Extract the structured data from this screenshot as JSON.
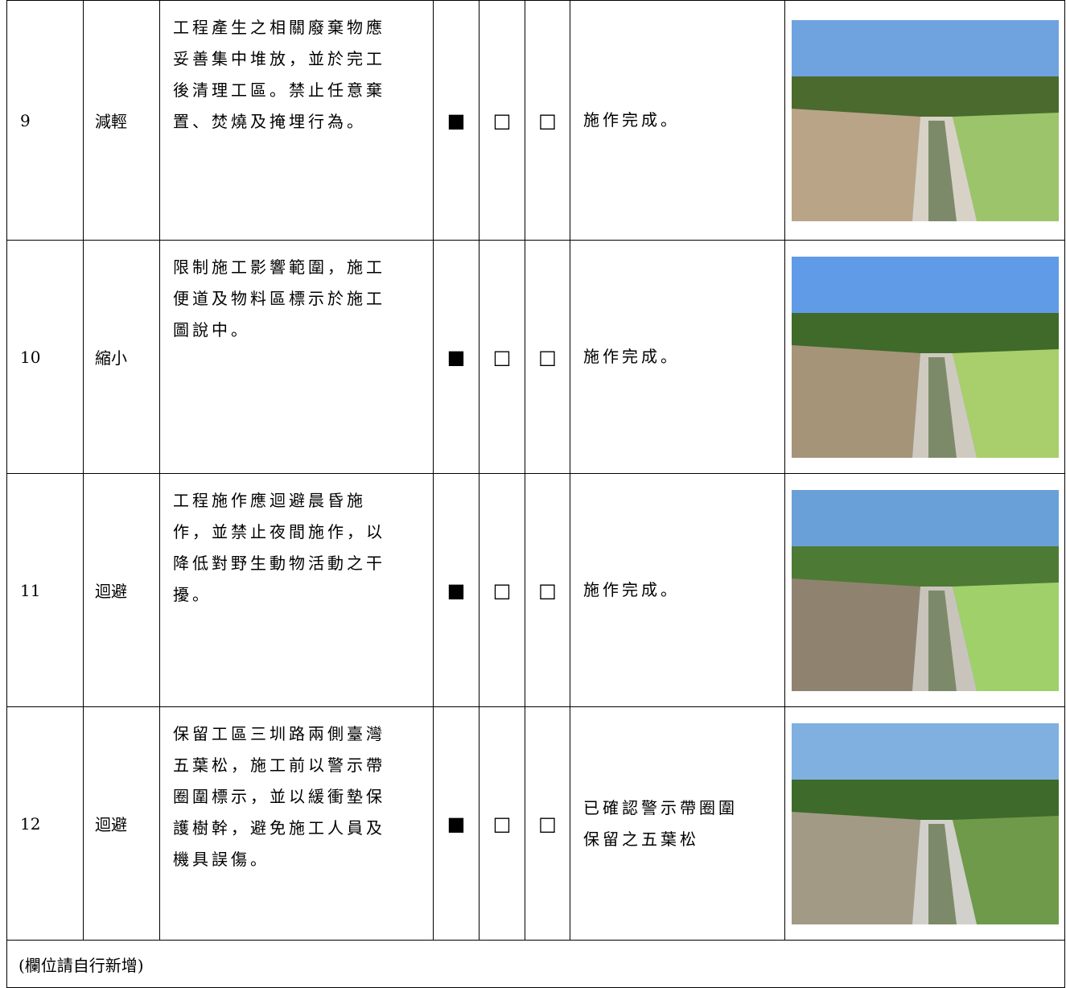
{
  "table": {
    "rows": [
      {
        "no": "9",
        "type": "減輕",
        "description": [
          "工程產生之相關廢棄物應",
          "妥善集中堆放，並於完工",
          "後清理工區。禁止任意棄",
          "置、焚燒及掩埋行為。"
        ],
        "checks": [
          "■",
          "□",
          "□"
        ],
        "result": [
          "施作完成。"
        ]
      },
      {
        "no": "10",
        "type": "縮小",
        "description": [
          "限制施工影響範圍，施工",
          "便道及物料區標示於施工",
          "圖說中。"
        ],
        "checks": [
          "■",
          "□",
          "□"
        ],
        "result": [
          "施作完成。"
        ]
      },
      {
        "no": "11",
        "type": "迴避",
        "description": [
          "工程施作應迴避晨昏施",
          "作，並禁止夜間施作，以",
          "降低對野生動物活動之干",
          "擾。"
        ],
        "checks": [
          "■",
          "□",
          "□"
        ],
        "result": [
          "施作完成。"
        ]
      },
      {
        "no": "12",
        "type": "迴避",
        "description": [
          "保留工區三圳路兩側臺灣",
          "五葉松，施工前以警示帶",
          "圈圍標示，並以緩衝墊保",
          "護樹幹，避免施工人員及",
          "機具誤傷。"
        ],
        "checks": [
          "■",
          "□",
          "□"
        ],
        "result": [
          "已確認警示帶圈圍",
          "保留之五葉松"
        ]
      }
    ],
    "footer": "(欄位請自行新增)"
  }
}
